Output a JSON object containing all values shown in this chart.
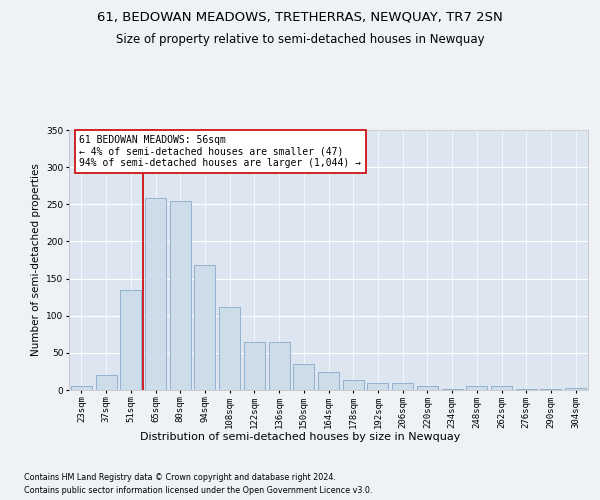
{
  "title1": "61, BEDOWAN MEADOWS, TRETHERRAS, NEWQUAY, TR7 2SN",
  "title2": "Size of property relative to semi-detached houses in Newquay",
  "xlabel": "Distribution of semi-detached houses by size in Newquay",
  "ylabel": "Number of semi-detached properties",
  "categories": [
    "23sqm",
    "37sqm",
    "51sqm",
    "65sqm",
    "80sqm",
    "94sqm",
    "108sqm",
    "122sqm",
    "136sqm",
    "150sqm",
    "164sqm",
    "178sqm",
    "192sqm",
    "206sqm",
    "220sqm",
    "234sqm",
    "248sqm",
    "262sqm",
    "276sqm",
    "290sqm",
    "304sqm"
  ],
  "values": [
    6,
    20,
    135,
    258,
    255,
    168,
    112,
    65,
    65,
    35,
    24,
    13,
    9,
    9,
    5,
    2,
    5,
    5,
    1,
    1,
    3
  ],
  "bar_color": "#ccdce8",
  "bar_edge_color": "#88aac8",
  "vline_x": 2,
  "vline_color": "#cc0000",
  "annotation_text": "61 BEDOWAN MEADOWS: 56sqm\n← 4% of semi-detached houses are smaller (47)\n94% of semi-detached houses are larger (1,044) →",
  "annotation_box_color": "#ffffff",
  "annotation_box_edge": "#cc0000",
  "ylim": [
    0,
    350
  ],
  "yticks": [
    0,
    50,
    100,
    150,
    200,
    250,
    300,
    350
  ],
  "footer1": "Contains HM Land Registry data © Crown copyright and database right 2024.",
  "footer2": "Contains public sector information licensed under the Open Government Licence v3.0.",
  "bg_color": "#eef2f7",
  "plot_bg_color": "#dde6f0",
  "grid_color": "#ffffff",
  "title1_fontsize": 9.5,
  "title2_fontsize": 8.5,
  "tick_fontsize": 6.5,
  "ylabel_fontsize": 7.5,
  "xlabel_fontsize": 8,
  "footer_fontsize": 5.8,
  "annot_fontsize": 7
}
